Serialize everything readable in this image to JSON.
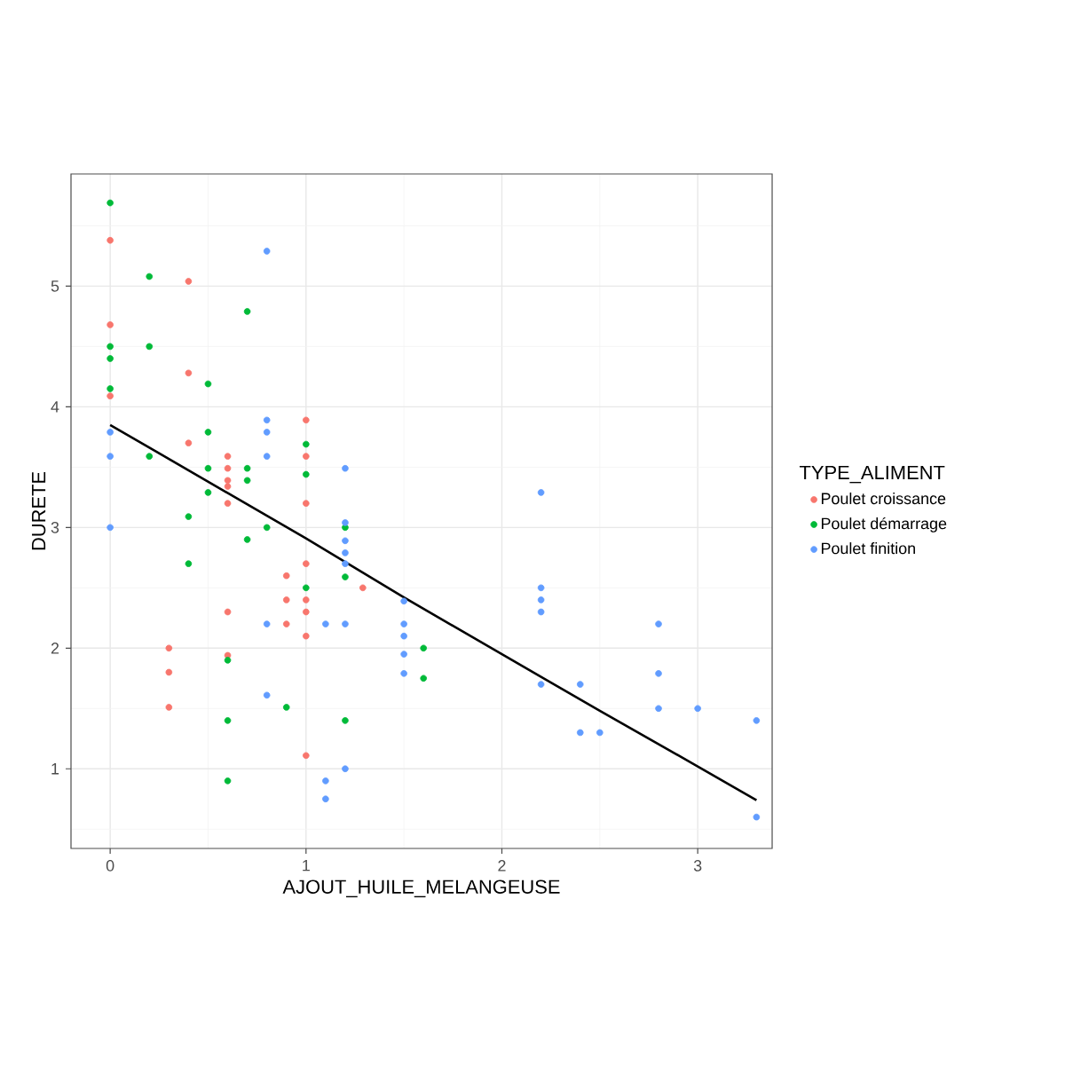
{
  "chart_data": {
    "type": "scatter",
    "xlabel": "AJOUT_HUILE_MELANGEUSE",
    "ylabel": "DURETE",
    "legend_title": "TYPE_ALIMENT",
    "xlim": [
      -0.2,
      3.38
    ],
    "ylim": [
      0.34,
      5.93
    ],
    "xticks": [
      0,
      1,
      2,
      3
    ],
    "yticks": [
      1,
      2,
      3,
      4,
      5
    ],
    "grid": true,
    "legend": "right",
    "series": [
      {
        "name": "Poulet croissance",
        "color": "#F8766D",
        "marker": "circle",
        "x": [
          0,
          0,
          0,
          0.4,
          0.4,
          0.4,
          0.6,
          0.6,
          0.6,
          0.6,
          0.6,
          0.6,
          0.6,
          0.3,
          0.3,
          0.3,
          0.9,
          0.9,
          0.9,
          1,
          1,
          1,
          1,
          1,
          1,
          1,
          1,
          1.29
        ],
        "values": [
          5.38,
          4.68,
          4.09,
          5.04,
          4.28,
          3.7,
          3.59,
          3.49,
          3.39,
          3.34,
          3.2,
          2.3,
          1.94,
          2.0,
          1.8,
          1.51,
          2.6,
          2.4,
          2.2,
          3.89,
          3.59,
          3.2,
          2.7,
          2.4,
          2.3,
          2.1,
          1.11,
          2.5
        ]
      },
      {
        "name": "Poulet démarrage",
        "color": "#00BA38",
        "marker": "circle",
        "x": [
          0,
          0,
          0,
          0,
          0.2,
          0.2,
          0.2,
          0.4,
          0.4,
          0.5,
          0.5,
          0.5,
          0.5,
          0.6,
          0.6,
          0.6,
          0.7,
          0.7,
          0.7,
          0.7,
          0.8,
          0.9,
          1,
          1,
          1,
          1.2,
          1.2,
          1.2,
          1.6,
          1.6
        ],
        "values": [
          5.69,
          4.5,
          4.4,
          4.15,
          5.08,
          4.5,
          3.59,
          3.09,
          2.7,
          4.19,
          3.79,
          3.49,
          3.29,
          1.9,
          1.4,
          0.9,
          4.79,
          3.49,
          3.39,
          2.9,
          3.0,
          1.51,
          3.69,
          3.44,
          2.5,
          3.0,
          2.59,
          1.4,
          2.0,
          1.75
        ]
      },
      {
        "name": "Poulet finition",
        "color": "#619CFF",
        "marker": "circle",
        "x": [
          0,
          0,
          0,
          0.8,
          0.8,
          0.8,
          0.8,
          0.8,
          0.8,
          1.1,
          1.1,
          1.1,
          1.2,
          1.2,
          1.2,
          1.2,
          1.2,
          1.2,
          1.2,
          1.5,
          1.5,
          1.5,
          1.5,
          1.5,
          2.2,
          2.2,
          2.2,
          2.2,
          2.2,
          2.4,
          2.4,
          2.5,
          2.8,
          2.8,
          2.8,
          3.0,
          3.3,
          3.3
        ],
        "values": [
          3.79,
          3.59,
          3.0,
          5.29,
          3.89,
          3.79,
          3.59,
          2.2,
          1.61,
          2.2,
          0.9,
          0.75,
          3.49,
          3.04,
          2.89,
          2.79,
          2.7,
          2.2,
          1.0,
          2.39,
          2.2,
          2.1,
          1.95,
          1.79,
          3.29,
          2.5,
          2.4,
          2.3,
          1.7,
          1.7,
          1.3,
          1.3,
          2.2,
          1.79,
          1.5,
          1.5,
          1.4,
          0.6
        ]
      },
      {
        "type": "line",
        "color": "#000000",
        "marker": "none",
        "x": [
          0,
          0.5,
          1,
          1.5,
          2,
          2.5,
          3,
          3.3
        ],
        "values": [
          3.85,
          3.38,
          2.91,
          2.42,
          1.95,
          1.48,
          1.02,
          0.74
        ]
      }
    ]
  }
}
